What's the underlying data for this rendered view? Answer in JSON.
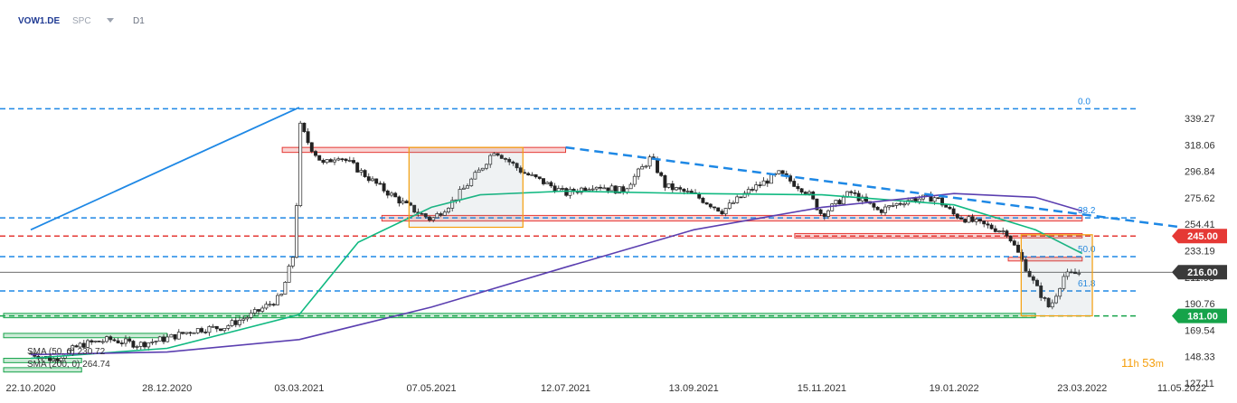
{
  "header": {
    "symbol": "VOW1.DE",
    "source": "SPC",
    "timeframe": "D1"
  },
  "indicators": [
    {
      "label": "SMA (50, 0) 230.72",
      "color": "#10b981"
    },
    {
      "label": "SMA (200, 0) 264.74",
      "color": "#5b3fb0"
    }
  ],
  "timer": {
    "hours": "11",
    "h_unit": "h",
    "minutes": "53",
    "m_unit": "m"
  },
  "fib_labels": [
    "0.0",
    "38.2",
    "50.0",
    "61.8"
  ],
  "price_tags": [
    {
      "label": "245.00",
      "value": 245.0,
      "color": "#e53935"
    },
    {
      "label": "216.00",
      "value": 216.0,
      "color": "#3a3a3a"
    },
    {
      "label": "181.00",
      "value": 181.0,
      "color": "#16a34a"
    }
  ],
  "chart_data": {
    "type": "candlestick",
    "title": "",
    "y_ticks": [
      "339.27",
      "318.06",
      "296.84",
      "275.62",
      "254.41",
      "233.19",
      "211.98",
      "190.76",
      "169.54",
      "148.33",
      "127.11"
    ],
    "x_ticks": [
      "22.10.2020",
      "28.12.2020",
      "03.03.2021",
      "07.05.2021",
      "12.07.2021",
      "13.09.2021",
      "15.11.2021",
      "19.01.2022",
      "23.03.2022",
      "11.05.2022"
    ],
    "ylim": [
      127.11,
      350
    ],
    "current_price": 216.0,
    "horizontal_levels": [
      {
        "label": "0.0",
        "value": 347,
        "color": "#1e88e5",
        "style": "dashed"
      },
      {
        "label": "38.2",
        "value": 259.5,
        "color": "#1e88e5",
        "style": "dashed"
      },
      {
        "label": "50.0",
        "value": 228.5,
        "color": "#1e88e5",
        "style": "dashed"
      },
      {
        "label": "61.8",
        "value": 201,
        "color": "#1e88e5",
        "style": "dashed"
      },
      {
        "label": "245.00",
        "value": 245.0,
        "color": "#e53935",
        "style": "dashed"
      },
      {
        "label": "181.00",
        "value": 181.0,
        "color": "#16a34a",
        "style": "dashed"
      }
    ],
    "close_series": [
      [
        "22.10.2020",
        151
      ],
      [
        "02.11.2020",
        146
      ],
      [
        "16.11.2020",
        158
      ],
      [
        "30.11.2020",
        162
      ],
      [
        "14.12.2020",
        158
      ],
      [
        "28.12.2020",
        163
      ],
      [
        "11.01.2021",
        170
      ],
      [
        "25.01.2021",
        172
      ],
      [
        "08.02.2021",
        182
      ],
      [
        "22.02.2021",
        196
      ],
      [
        "01.03.2021",
        235
      ],
      [
        "03.03.2021",
        335
      ],
      [
        "08.03.2021",
        318
      ],
      [
        "15.03.2021",
        302
      ],
      [
        "22.03.2021",
        310
      ],
      [
        "29.03.2021",
        302
      ],
      [
        "12.04.2021",
        284
      ],
      [
        "26.04.2021",
        268
      ],
      [
        "07.05.2021",
        258
      ],
      [
        "17.05.2021",
        272
      ],
      [
        "31.05.2021",
        298
      ],
      [
        "07.06.2021",
        314
      ],
      [
        "21.06.2021",
        296
      ],
      [
        "05.07.2021",
        285
      ],
      [
        "12.07.2021",
        279
      ],
      [
        "26.07.2021",
        286
      ],
      [
        "09.08.2021",
        281
      ],
      [
        "23.08.2021",
        308
      ],
      [
        "30.08.2021",
        285
      ],
      [
        "13.09.2021",
        278
      ],
      [
        "27.09.2021",
        265
      ],
      [
        "11.10.2021",
        282
      ],
      [
        "25.10.2021",
        295
      ],
      [
        "08.11.2021",
        280
      ],
      [
        "15.11.2021",
        262
      ],
      [
        "29.11.2021",
        280
      ],
      [
        "13.12.2021",
        265
      ],
      [
        "27.12.2021",
        274
      ],
      [
        "10.01.2022",
        276
      ],
      [
        "19.01.2022",
        262
      ],
      [
        "31.01.2022",
        255
      ],
      [
        "14.02.2022",
        248
      ],
      [
        "28.02.2022",
        205
      ],
      [
        "07.03.2022",
        187
      ],
      [
        "14.03.2022",
        213
      ],
      [
        "23.03.2022",
        216
      ]
    ],
    "sma50": [
      [
        "22.10.2020",
        147
      ],
      [
        "28.12.2020",
        155
      ],
      [
        "03.03.2021",
        182
      ],
      [
        "01.04.2021",
        240
      ],
      [
        "07.05.2021",
        268
      ],
      [
        "31.05.2021",
        278
      ],
      [
        "12.07.2021",
        281
      ],
      [
        "13.09.2021",
        279
      ],
      [
        "15.11.2021",
        278
      ],
      [
        "19.01.2022",
        270
      ],
      [
        "28.02.2022",
        250
      ],
      [
        "23.03.2022",
        231
      ]
    ],
    "sma200": [
      [
        "22.10.2020",
        150
      ],
      [
        "28.12.2020",
        152
      ],
      [
        "03.03.2021",
        162
      ],
      [
        "07.05.2021",
        188
      ],
      [
        "12.07.2021",
        220
      ],
      [
        "13.09.2021",
        250
      ],
      [
        "15.11.2021",
        268
      ],
      [
        "19.01.2022",
        279
      ],
      [
        "28.02.2022",
        276
      ],
      [
        "23.03.2022",
        265
      ]
    ],
    "trendlines": [
      {
        "from": [
          "22.10.2020",
          250
        ],
        "to": [
          "03.03.2021",
          348
        ],
        "color": "#1e88e5",
        "style": "solid"
      },
      {
        "from": [
          "12.07.2021",
          316
        ],
        "to": [
          "11.05.2022",
          252
        ],
        "color": "#1e88e5",
        "style": "dashed"
      }
    ],
    "zones": [
      {
        "from": "08.03.2021",
        "to": "12.07.2021",
        "low": 312,
        "high": 316,
        "color": "#e53935"
      },
      {
        "from": "26.04.2021",
        "to": "23.03.2022",
        "low": 257,
        "high": 261.5,
        "color": "#e53935"
      },
      {
        "from": "15.11.2021",
        "to": "23.03.2022",
        "low": 243.5,
        "high": 247,
        "color": "#e53935"
      },
      {
        "from": "28.02.2022",
        "to": "23.03.2022",
        "low": 225,
        "high": 228,
        "color": "#e53935"
      },
      {
        "from": "22.10.2020",
        "to": "28.02.2022",
        "low": 179.5,
        "high": 183,
        "color": "#16a34a"
      },
      {
        "from": "22.10.2020",
        "to": "28.12.2020",
        "low": 163.5,
        "high": 167,
        "color": "#16a34a"
      },
      {
        "from": "22.10.2020",
        "to": "16.11.2020",
        "low": 143.5,
        "high": 147,
        "color": "#16a34a"
      },
      {
        "from": "22.10.2020",
        "to": "16.11.2020",
        "low": 136,
        "high": 139.5,
        "color": "#16a34a"
      }
    ],
    "boxes": [
      {
        "from": "26.04.2021",
        "to": "21.06.2021",
        "low": 252,
        "high": 316,
        "color": "#f59e0b"
      },
      {
        "from": "21.02.2022",
        "to": "28.03.2022",
        "low": 181,
        "high": 246,
        "color": "#f59e0b"
      }
    ],
    "legend": "top-left"
  }
}
